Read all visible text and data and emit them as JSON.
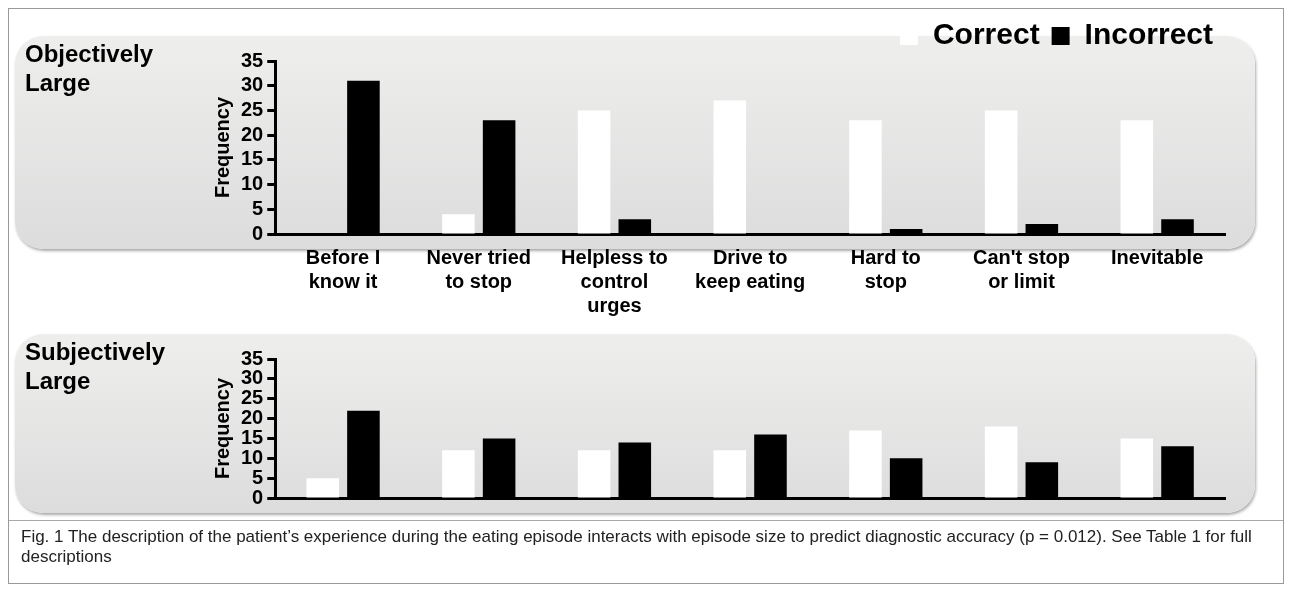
{
  "chart_data": [
    {
      "type": "bar",
      "title": "Objectively Large",
      "ylabel": "Frequency",
      "categories": [
        "Before I know it",
        "Never tried to stop",
        "Helpless to control urges",
        "Drive to keep eating",
        "Hard to stop",
        "Can't stop or limit",
        "Inevitable"
      ],
      "series": [
        {
          "name": "Correct",
          "color": "#ffffff",
          "values": [
            0,
            4,
            25,
            27,
            23,
            25,
            23
          ]
        },
        {
          "name": "Incorrect",
          "color": "#000000",
          "values": [
            31,
            23,
            3,
            0,
            1,
            2,
            3
          ]
        }
      ],
      "ylim": [
        0,
        35
      ],
      "yticks": [
        0,
        5,
        10,
        15,
        20,
        25,
        30,
        35
      ],
      "grid": false,
      "legend": "top right"
    },
    {
      "type": "bar",
      "title": "Subjectively Large",
      "ylabel": "Frequency",
      "categories": [
        null,
        null,
        null,
        null,
        null,
        null,
        null
      ],
      "series": [
        {
          "color": "#ffffff",
          "values": [
            5,
            12,
            12,
            12,
            17,
            18,
            15
          ]
        },
        {
          "color": "#000000",
          "values": [
            22,
            15,
            14,
            16,
            10,
            9,
            13
          ]
        }
      ],
      "ylim": [
        0,
        35
      ],
      "yticks": [
        0,
        5,
        10,
        15,
        20,
        25,
        30,
        35
      ],
      "grid": false,
      "legend": false,
      "tick_labels": "y",
      "annotations": [
        "Fig. 1 The description of the patient’s experience during the eating episode interacts with episode size to predict diagnostic accuracy (p = 0.012). See Table 1 for full descriptions"
      ]
    }
  ]
}
